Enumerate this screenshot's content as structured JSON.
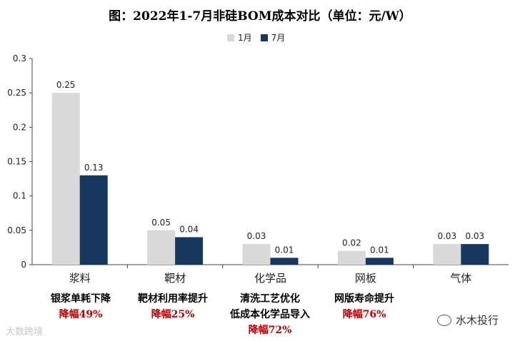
{
  "chart_data": {
    "type": "bar",
    "title": "图：2022年1-7月非硅BOM成本对比（单位：元/W）",
    "categories": [
      "浆料",
      "靶材",
      "化学品",
      "网板",
      "气体"
    ],
    "series": [
      {
        "name": "1月",
        "values": [
          0.25,
          0.05,
          0.03,
          0.02,
          0.03
        ],
        "color": "#d9d9d9"
      },
      {
        "name": "7月",
        "values": [
          0.13,
          0.04,
          0.01,
          0.01,
          0.03
        ],
        "color": "#17375e"
      }
    ],
    "data_labels": [
      [
        "0.25",
        "0.05",
        "0.03",
        "0.02",
        "0.03"
      ],
      [
        "0.13",
        "0.04",
        "0.01",
        "0.01",
        "0.03"
      ]
    ],
    "ylim": [
      0,
      0.3
    ],
    "yticks": [
      "0",
      "0.05",
      "0.1",
      "0.15",
      "0.2",
      "0.25",
      "0.3"
    ],
    "grid": false,
    "legend_position": "top"
  },
  "notes": [
    {
      "line1": "银浆单耗下降",
      "line2": "",
      "drop": "降幅49%"
    },
    {
      "line1": "靶材利用率提升",
      "line2": "",
      "drop": "降幅25%"
    },
    {
      "line1": "清洗工艺优化",
      "line2": "低成本化学品导入",
      "drop": "降幅72%"
    },
    {
      "line1": "网版寿命提升",
      "line2": "",
      "drop": "降幅76%"
    }
  ],
  "watermarks": {
    "right": "水木投行",
    "left": "大数跨境"
  }
}
